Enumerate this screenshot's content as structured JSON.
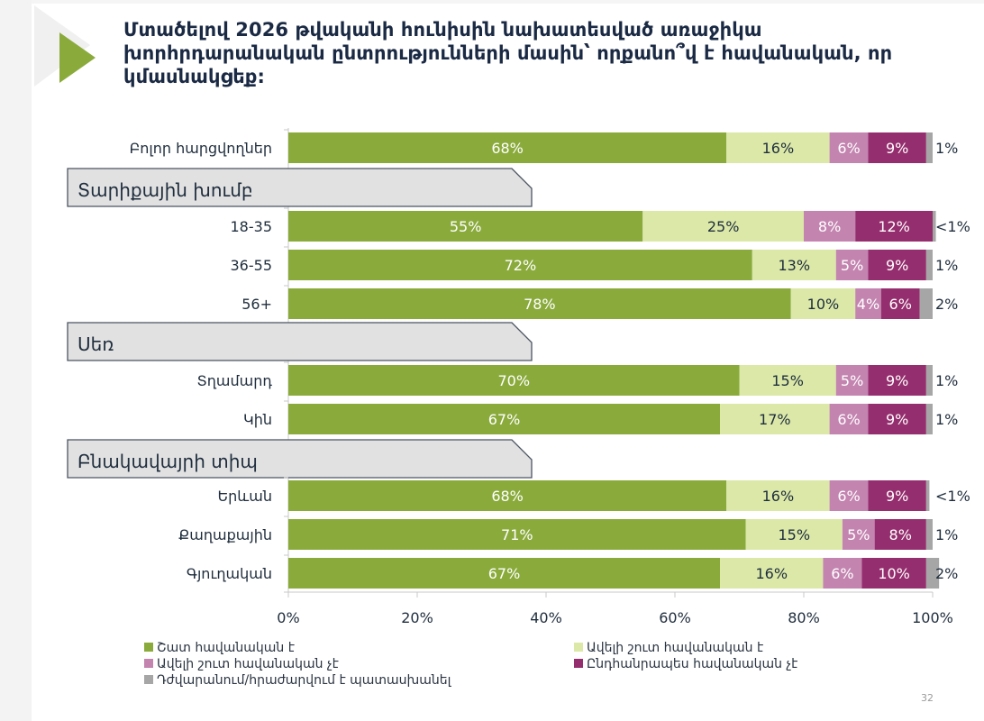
{
  "title": "Մտածելով 2026 թվականի հունիսին նախատեսված առաջիկա խորհրդարանական ընտրությունների մասին՝ որքանո՞վ է հավանական, որ կմասնակցեք:",
  "page_number": "32",
  "colors": {
    "brand_green": "#8aab3c",
    "very_likely": "#8aab3c",
    "rather_likely": "#dbe8a8",
    "rather_unlikely": "#c384b0",
    "not_likely": "#952e6e",
    "dk_refuse": "#a6a6a6",
    "section_fill": "#e1e1e1",
    "section_border": "#4b5563"
  },
  "legend": [
    {
      "label": "Շատ հավանական է",
      "key": "very_likely"
    },
    {
      "label": "Ավելի շուտ հավանական է",
      "key": "rather_likely"
    },
    {
      "label": "Ավելի շուտ հավանական չէ",
      "key": "rather_unlikely"
    },
    {
      "label": "Ընդհանրապես հավանական չէ",
      "key": "not_likely"
    },
    {
      "label": "Դժվարանում/հրաժարվում է պատասխանել",
      "key": "dk_refuse"
    }
  ],
  "chart_data": {
    "type": "bar",
    "orientation": "horizontal-stacked-100",
    "title": "Մտածելով 2026 թվականի հունիսին նախատեսված առաջիկա խորհրդարանական ընտրությունների մասին՝ որքանո՞վ է հավանական, որ կմասնակցեք:",
    "xlim": [
      0,
      100
    ],
    "x_ticks": [
      "0%",
      "20%",
      "40%",
      "60%",
      "80%",
      "100%"
    ],
    "series_names": [
      "Շատ հավանական է",
      "Ավելի շուտ հավանական է",
      "Ավելի շուտ հավանական չէ",
      "Ընդհանրապես հավանական չէ",
      "Դժվարանում/հրաժարվում է պատասխանել"
    ],
    "legend_position": "bottom",
    "rows": [
      {
        "type": "bar",
        "label": "Բոլոր հարցվողներ",
        "values": [
          68,
          16,
          6,
          9,
          1
        ],
        "labels": [
          "68%",
          "16%",
          "6%",
          "9%",
          "1%"
        ]
      },
      {
        "type": "section",
        "label": "Տարիքային խումբ"
      },
      {
        "type": "bar",
        "label": "18-35",
        "values": [
          55,
          25,
          8,
          12,
          0.5
        ],
        "labels": [
          "55%",
          "25%",
          "8%",
          "12%",
          "<1%"
        ]
      },
      {
        "type": "bar",
        "label": "36-55",
        "values": [
          72,
          13,
          5,
          9,
          1
        ],
        "labels": [
          "72%",
          "13%",
          "5%",
          "9%",
          "1%"
        ]
      },
      {
        "type": "bar",
        "label": "56+",
        "values": [
          78,
          10,
          4,
          6,
          2
        ],
        "labels": [
          "78%",
          "10%",
          "4%",
          "6%",
          "2%"
        ]
      },
      {
        "type": "section",
        "label": "Սեռ"
      },
      {
        "type": "bar",
        "label": "Տղամարդ",
        "values": [
          70,
          15,
          5,
          9,
          1
        ],
        "labels": [
          "70%",
          "15%",
          "5%",
          "9%",
          "1%"
        ]
      },
      {
        "type": "bar",
        "label": "Կին",
        "values": [
          67,
          17,
          6,
          9,
          1
        ],
        "labels": [
          "67%",
          "17%",
          "6%",
          "9%",
          "1%"
        ]
      },
      {
        "type": "section",
        "label": "Բնակավայրի տիպ"
      },
      {
        "type": "bar",
        "label": "Երևան",
        "values": [
          68,
          16,
          6,
          9,
          0.5
        ],
        "labels": [
          "68%",
          "16%",
          "6%",
          "9%",
          "<1%"
        ]
      },
      {
        "type": "bar",
        "label": "Քաղաքային",
        "values": [
          71,
          15,
          5,
          8,
          1
        ],
        "labels": [
          "71%",
          "15%",
          "5%",
          "8%",
          "1%"
        ]
      },
      {
        "type": "bar",
        "label": "Գյուղական",
        "values": [
          67,
          16,
          6,
          10,
          2
        ],
        "labels": [
          "67%",
          "16%",
          "6%",
          "10%",
          "2%"
        ]
      }
    ]
  }
}
